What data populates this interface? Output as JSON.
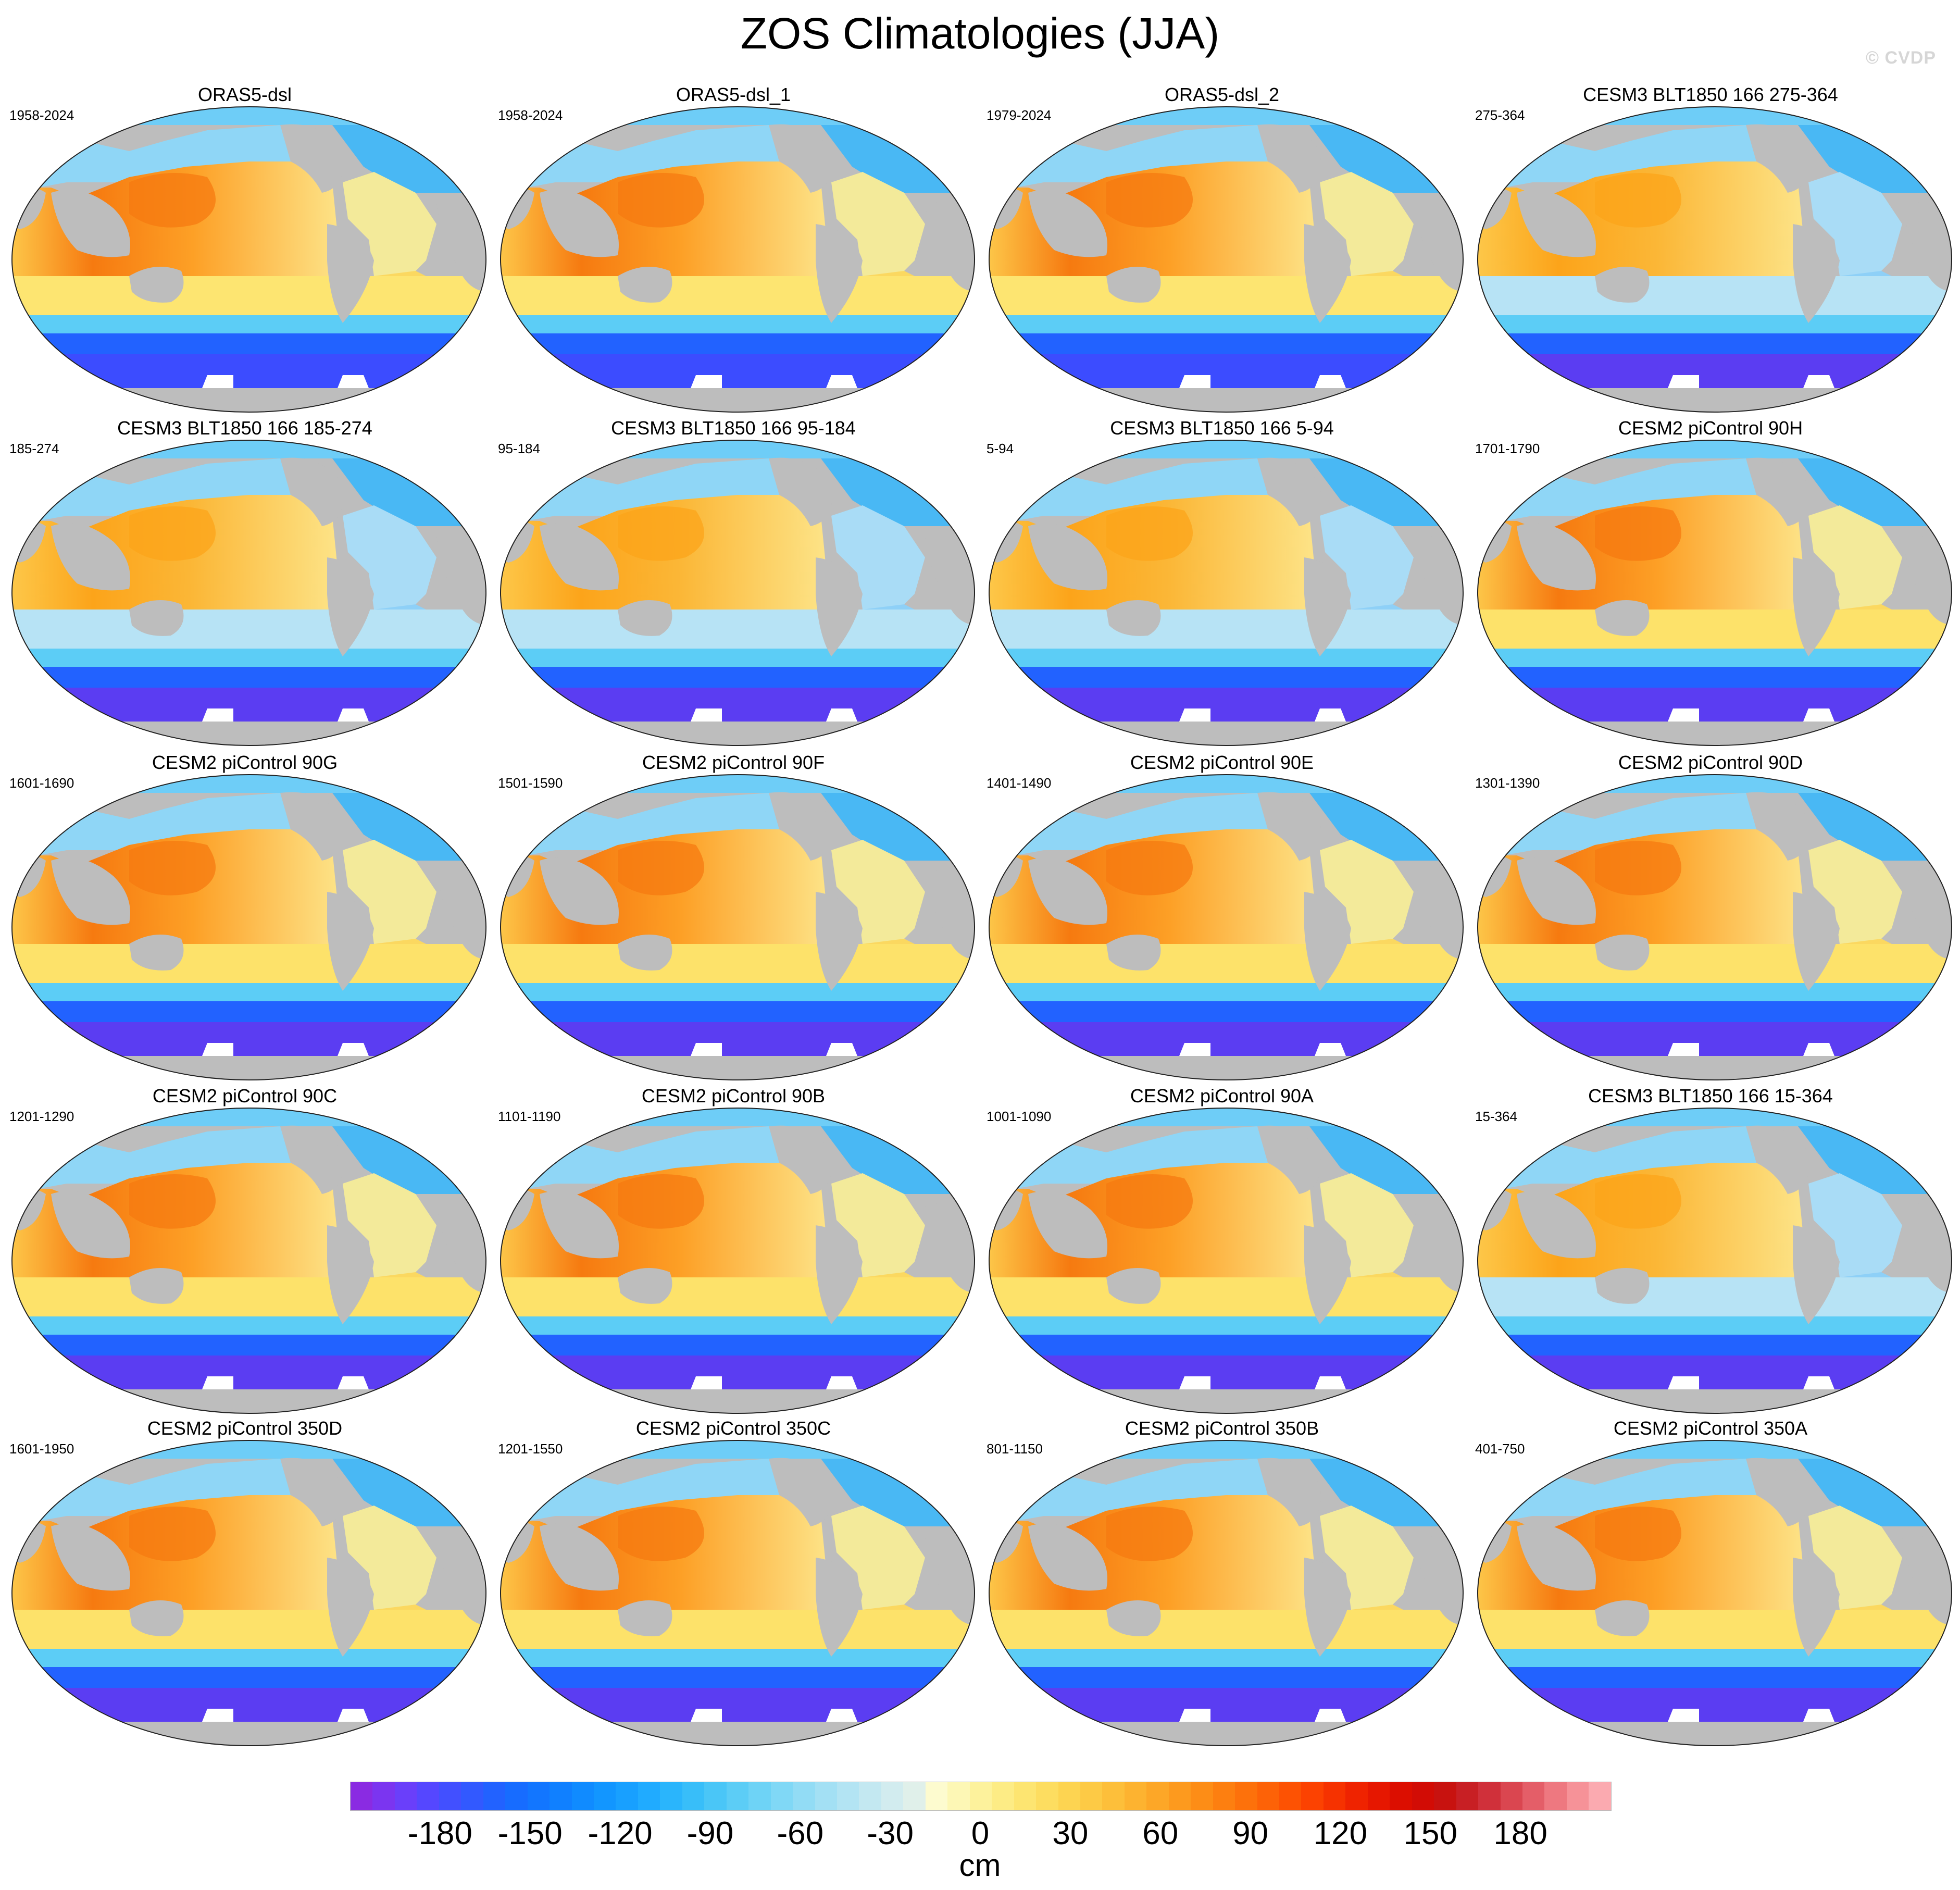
{
  "figure": {
    "title": "ZOS Climatologies (JJA)",
    "watermark": "© CVDP"
  },
  "panels": [
    {
      "name": "ORAS5-dsl",
      "period": "1958-2024",
      "variant": "obs"
    },
    {
      "name": "ORAS5-dsl_1",
      "period": "1958-2024",
      "variant": "obs"
    },
    {
      "name": "ORAS5-dsl_2",
      "period": "1979-2024",
      "variant": "obs"
    },
    {
      "name": "CESM3 BLT1850 166 275-364",
      "period": "275-364",
      "variant": "cesm3"
    },
    {
      "name": "CESM3 BLT1850 166 185-274",
      "period": "185-274",
      "variant": "cesm3"
    },
    {
      "name": "CESM3 BLT1850 166 95-184",
      "period": "95-184",
      "variant": "cesm3"
    },
    {
      "name": "CESM3 BLT1850 166 5-94",
      "period": "5-94",
      "variant": "cesm3"
    },
    {
      "name": "CESM2 piControl 90H",
      "period": "1701-1790",
      "variant": "cesm2"
    },
    {
      "name": "CESM2 piControl 90G",
      "period": "1601-1690",
      "variant": "cesm2"
    },
    {
      "name": "CESM2 piControl 90F",
      "period": "1501-1590",
      "variant": "cesm2"
    },
    {
      "name": "CESM2 piControl 90E",
      "period": "1401-1490",
      "variant": "cesm2"
    },
    {
      "name": "CESM2 piControl 90D",
      "period": "1301-1390",
      "variant": "cesm2"
    },
    {
      "name": "CESM2 piControl 90C",
      "period": "1201-1290",
      "variant": "cesm2"
    },
    {
      "name": "CESM2 piControl 90B",
      "period": "1101-1190",
      "variant": "cesm2"
    },
    {
      "name": "CESM2 piControl 90A",
      "period": "1001-1090",
      "variant": "cesm2"
    },
    {
      "name": "CESM3 BLT1850 166 15-364",
      "period": "15-364",
      "variant": "cesm3"
    },
    {
      "name": "CESM2 piControl 350D",
      "period": "1601-1950",
      "variant": "cesm2"
    },
    {
      "name": "CESM2 piControl 350C",
      "period": "1201-1550",
      "variant": "cesm2"
    },
    {
      "name": "CESM2 piControl 350B",
      "period": "801-1150",
      "variant": "cesm2"
    },
    {
      "name": "CESM2 piControl 350A",
      "period": "401-750",
      "variant": "cesm2"
    }
  ],
  "colorbar": {
    "units": "cm",
    "labels": [
      "-180",
      "-150",
      "-120",
      "-90",
      "-60",
      "-30",
      "0",
      "30",
      "60",
      "90",
      "120",
      "150",
      "180"
    ],
    "colors": [
      "#8a2be2",
      "#7b35f0",
      "#6a3ffa",
      "#5547ff",
      "#4250ff",
      "#3259ff",
      "#2262ff",
      "#176cff",
      "#1276ff",
      "#1080ff",
      "#108bff",
      "#1296ff",
      "#18a0ff",
      "#20abff",
      "#2ab5fc",
      "#38bef9",
      "#4ac6f7",
      "#5ccdf6",
      "#6ed3f6",
      "#80d8f6",
      "#92dcf5",
      "#a3e0f4",
      "#b3e4f3",
      "#c3e8f1",
      "#d2ecef",
      "#e0f0ea",
      "#fdfbcf",
      "#fdf7b5",
      "#fdf29c",
      "#fdec85",
      "#fde571",
      "#fddd60",
      "#fdd451",
      "#fdca45",
      "#fdbf3a",
      "#fdb330",
      "#fda727",
      "#fd9a1e",
      "#fd8d16",
      "#fd7f10",
      "#fd710b",
      "#fd6207",
      "#fd5203",
      "#fc4201",
      "#f63200",
      "#ef2300",
      "#e61700",
      "#dc0e00",
      "#d20c05",
      "#c8120f",
      "#c81f24",
      "#d0303a",
      "#da4650",
      "#e45e68",
      "#ee7880",
      "#f69298",
      "#fbaab0"
    ],
    "range": [
      -210,
      210
    ]
  }
}
